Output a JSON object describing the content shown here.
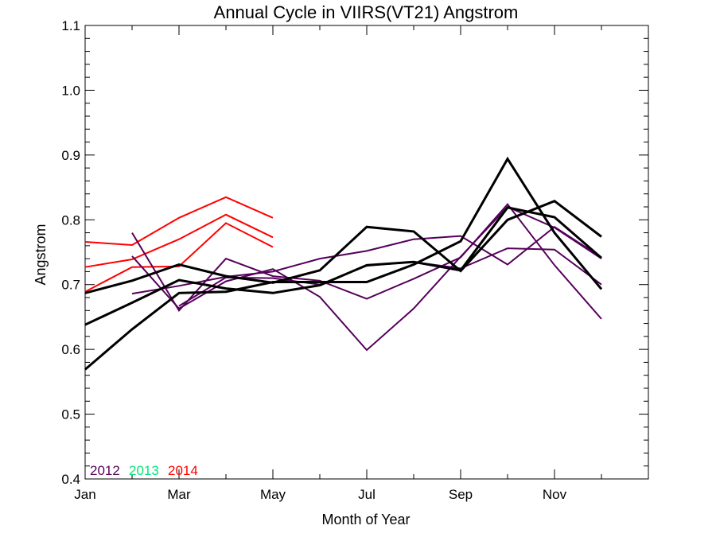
{
  "chart_data": {
    "type": "line",
    "title": "Annual Cycle in VIIRS(VT21) Angstrom",
    "xlabel": "Month of Year",
    "ylabel": "Angstrom",
    "xlim": [
      1,
      13
    ],
    "ylim": [
      0.4,
      1.1
    ],
    "xticks": [
      {
        "value": 1,
        "label": "Jan"
      },
      {
        "value": 3,
        "label": "Mar"
      },
      {
        "value": 5,
        "label": "May"
      },
      {
        "value": 7,
        "label": "Jul"
      },
      {
        "value": 9,
        "label": "Sep"
      },
      {
        "value": 11,
        "label": "Nov"
      }
    ],
    "yticks": [
      {
        "value": 0.4,
        "label": "0.4"
      },
      {
        "value": 0.5,
        "label": "0.5"
      },
      {
        "value": 0.6,
        "label": "0.6"
      },
      {
        "value": 0.7,
        "label": "0.7"
      },
      {
        "value": 0.8,
        "label": "0.8"
      },
      {
        "value": 0.9,
        "label": "0.9"
      },
      {
        "value": 1.0,
        "label": "1.0"
      },
      {
        "value": 1.1,
        "label": "1.1"
      }
    ],
    "legend": {
      "placement": "bottom-left",
      "entries": [
        {
          "label": "2012",
          "color": "#55005a"
        },
        {
          "label": "2013",
          "color": "#00e676"
        },
        {
          "label": "2014",
          "color": "#ff0000"
        }
      ]
    },
    "grid": false,
    "series": [
      {
        "color": "#ff0000",
        "x": [
          1,
          2,
          3,
          4,
          5
        ],
        "y": [
          0.766,
          0.761,
          0.803,
          0.835,
          0.803
        ]
      },
      {
        "color": "#ff0000",
        "x": [
          1,
          2,
          3,
          4,
          5
        ],
        "y": [
          0.727,
          0.739,
          0.77,
          0.808,
          0.773
        ]
      },
      {
        "color": "#ff0000",
        "x": [
          1,
          2,
          3,
          4,
          5
        ],
        "y": [
          0.689,
          0.727,
          0.728,
          0.795,
          0.758
        ]
      },
      {
        "color": "#55005a",
        "x": [
          2,
          3,
          4,
          5,
          6,
          7,
          8,
          9,
          10,
          11,
          12
        ],
        "y": [
          0.78,
          0.66,
          0.74,
          0.713,
          0.706,
          0.678,
          0.709,
          0.742,
          0.824,
          0.73,
          0.647
        ]
      },
      {
        "color": "#55005a",
        "x": [
          2,
          3,
          4,
          5,
          6,
          7,
          8,
          9,
          10,
          11,
          12
        ],
        "y": [
          0.744,
          0.663,
          0.705,
          0.724,
          0.681,
          0.599,
          0.663,
          0.743,
          0.82,
          0.788,
          0.74
        ]
      },
      {
        "color": "#55005a",
        "x": [
          2,
          3,
          4,
          5,
          6,
          7,
          8,
          9,
          10,
          11,
          12
        ],
        "y": [
          0.686,
          0.698,
          0.712,
          0.72,
          0.74,
          0.752,
          0.77,
          0.775,
          0.731,
          0.789,
          0.742
        ]
      },
      {
        "color": "#55005a",
        "x": [
          3,
          4,
          5,
          6,
          7,
          8,
          9,
          10,
          11,
          12
        ],
        "y": [
          0.667,
          0.711,
          0.71,
          0.7,
          0.729,
          0.735,
          0.725,
          0.756,
          0.754,
          0.7
        ]
      },
      {
        "color": "#000000",
        "x": [
          1,
          2,
          3,
          4,
          5,
          6,
          7,
          8,
          9,
          10,
          11,
          12
        ],
        "y": [
          0.569,
          0.631,
          0.687,
          0.689,
          0.704,
          0.704,
          0.704,
          0.731,
          0.767,
          0.894,
          0.78,
          0.693
        ]
      },
      {
        "color": "#000000",
        "x": [
          1,
          2,
          3,
          4,
          5,
          6,
          7,
          8,
          9,
          10,
          11,
          12
        ],
        "y": [
          0.638,
          0.672,
          0.707,
          0.694,
          0.687,
          0.699,
          0.73,
          0.735,
          0.722,
          0.819,
          0.804,
          0.741
        ]
      },
      {
        "color": "#000000",
        "x": [
          1,
          2,
          3,
          4,
          5,
          6,
          7,
          8,
          9,
          10,
          11,
          12
        ],
        "y": [
          0.687,
          0.706,
          0.731,
          0.713,
          0.703,
          0.722,
          0.789,
          0.782,
          0.721,
          0.8,
          0.829,
          0.774
        ]
      }
    ]
  }
}
